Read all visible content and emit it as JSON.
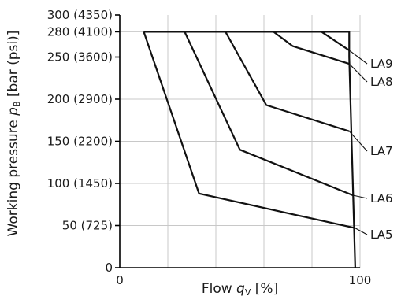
{
  "chart_data": {
    "type": "line",
    "title": "",
    "xlabel": {
      "text": "Flow ",
      "symbol": "q",
      "subscript": "V",
      "unit": " [%]"
    },
    "ylabel": {
      "text": "Working pressure ",
      "symbol": "p",
      "subscript": "B",
      "unit": " [bar (psi)]"
    },
    "xlim": [
      0,
      100
    ],
    "ylim": [
      0,
      300
    ],
    "grid": true,
    "x_ticks": [
      {
        "value": 0,
        "label": "0"
      },
      {
        "value": 100,
        "label": "100"
      }
    ],
    "x_grid": [
      0,
      20,
      40,
      60,
      80,
      100
    ],
    "y_ticks": [
      {
        "value": 0,
        "label": "0"
      },
      {
        "value": 50,
        "label": "50 (725)"
      },
      {
        "value": 100,
        "label": "100 (1450)"
      },
      {
        "value": 150,
        "label": "150 (2200)"
      },
      {
        "value": 200,
        "label": "200 (2900)"
      },
      {
        "value": 250,
        "label": "250 (3600)"
      },
      {
        "value": 280,
        "label": "280 (4100)"
      },
      {
        "value": 300,
        "label": "300 (4350)"
      }
    ],
    "y_grid": [
      50,
      100,
      150,
      200,
      250,
      280
    ],
    "envelope": [
      [
        10,
        280
      ],
      [
        95.5,
        280
      ],
      [
        95.5,
        250
      ],
      [
        98,
        0
      ]
    ],
    "series": [
      {
        "name": "LA9",
        "x": [
          84,
          95.5
        ],
        "y": [
          280,
          258
        ]
      },
      {
        "name": "LA8",
        "x": [
          64,
          72,
          95.5
        ],
        "y": [
          280,
          263,
          242
        ]
      },
      {
        "name": "LA7",
        "x": [
          44,
          61,
          95.5
        ],
        "y": [
          280,
          193,
          162
        ]
      },
      {
        "name": "LA6",
        "x": [
          27,
          50,
          97
        ],
        "y": [
          280,
          140,
          86
        ]
      },
      {
        "name": "LA5",
        "x": [
          10,
          33,
          98
        ],
        "y": [
          280,
          88,
          47
        ]
      }
    ]
  }
}
